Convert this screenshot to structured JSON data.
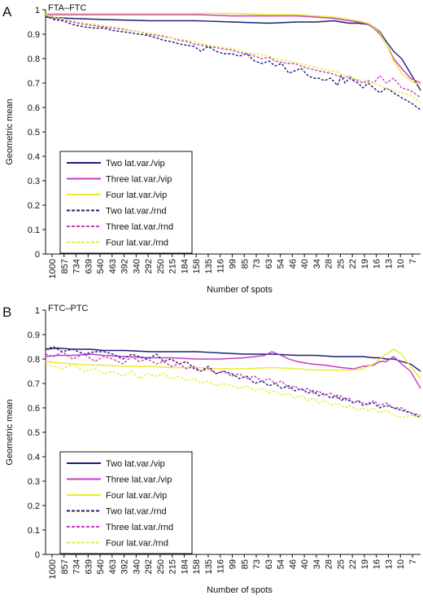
{
  "chart_data": [
    {
      "panel_label": "A",
      "title": "FTA–FTC",
      "type": "line",
      "xlabel": "Number of spots",
      "ylabel": "Geometric mean",
      "ylim": [
        0,
        1
      ],
      "yticks": [
        "0",
        "0.1",
        "0.2",
        "0.3",
        "0.4",
        "0.5",
        "0.6",
        "0.7",
        "0.8",
        "0.9",
        "1"
      ],
      "x_categories": [
        "1000",
        "857",
        "734",
        "639",
        "540",
        "463",
        "392",
        "340",
        "292",
        "250",
        "215",
        "184",
        "158",
        "135",
        "116",
        "99",
        "85",
        "73",
        "63",
        "54",
        "46",
        "40",
        "34",
        "28",
        "25",
        "22",
        "19",
        "16",
        "13",
        "10",
        "7"
      ],
      "x_reversed_spot_count": true,
      "grid": false,
      "legend_position": "center-left",
      "series": [
        {
          "name": "Two lat.var./vip",
          "color": "#1c1f7a",
          "dash": false,
          "x": [
            1000,
            732,
            463,
            247,
            136,
            85,
            52,
            36,
            28,
            22,
            20,
            18,
            16,
            14,
            13,
            12,
            11,
            10,
            9,
            8,
            7
          ],
          "y": [
            0.97,
            0.965,
            0.96,
            0.955,
            0.955,
            0.95,
            0.945,
            0.95,
            0.95,
            0.955,
            0.95,
            0.945,
            0.945,
            0.94,
            0.93,
            0.91,
            0.87,
            0.83,
            0.8,
            0.74,
            0.67
          ]
        },
        {
          "name": "Three lat.var./vip",
          "color": "#c43cc4",
          "dash": false,
          "x": [
            1000,
            732,
            463,
            247,
            136,
            85,
            52,
            36,
            28,
            22,
            20,
            18,
            16,
            14,
            13,
            12,
            11,
            10,
            9,
            8,
            7
          ],
          "y": [
            0.98,
            0.98,
            0.98,
            0.98,
            0.98,
            0.975,
            0.975,
            0.975,
            0.97,
            0.965,
            0.96,
            0.955,
            0.95,
            0.94,
            0.925,
            0.9,
            0.86,
            0.8,
            0.76,
            0.72,
            0.7
          ]
        },
        {
          "name": "Four lat.var./vip",
          "color": "#e8ec2c",
          "dash": false,
          "x": [
            1000,
            732,
            463,
            247,
            136,
            85,
            52,
            36,
            28,
            22,
            20,
            18,
            16,
            14,
            13,
            12,
            11,
            10,
            9,
            8,
            7
          ],
          "y": [
            0.985,
            0.985,
            0.985,
            0.985,
            0.985,
            0.985,
            0.98,
            0.98,
            0.975,
            0.97,
            0.965,
            0.96,
            0.955,
            0.945,
            0.93,
            0.905,
            0.86,
            0.79,
            0.74,
            0.71,
            0.69
          ]
        },
        {
          "name": "Two lat.var./rnd",
          "color": "#1c1f7a",
          "dash": true,
          "x": [
            1000,
            900,
            800,
            700,
            600,
            520,
            463,
            410,
            360,
            320,
            290,
            260,
            230,
            210,
            190,
            170,
            155,
            140,
            128,
            116,
            105,
            95,
            85,
            77,
            70,
            63,
            57,
            52,
            48,
            44,
            40,
            37,
            34,
            31,
            29,
            27,
            25,
            23,
            21,
            20,
            19,
            18,
            17,
            16,
            15,
            14,
            13,
            12,
            11,
            10,
            9,
            8,
            7
          ],
          "y": [
            0.975,
            0.96,
            0.955,
            0.94,
            0.93,
            0.925,
            0.925,
            0.915,
            0.91,
            0.905,
            0.9,
            0.895,
            0.885,
            0.875,
            0.87,
            0.86,
            0.855,
            0.85,
            0.83,
            0.85,
            0.83,
            0.82,
            0.82,
            0.81,
            0.82,
            0.79,
            0.78,
            0.79,
            0.77,
            0.78,
            0.74,
            0.75,
            0.76,
            0.73,
            0.72,
            0.72,
            0.71,
            0.72,
            0.69,
            0.73,
            0.7,
            0.72,
            0.71,
            0.7,
            0.68,
            0.7,
            0.68,
            0.66,
            0.68,
            0.66,
            0.64,
            0.62,
            0.59
          ]
        },
        {
          "name": "Three lat.var./rnd",
          "color": "#c43cc4",
          "dash": true,
          "x": [
            1000,
            900,
            800,
            700,
            600,
            520,
            463,
            410,
            360,
            320,
            290,
            260,
            230,
            210,
            190,
            170,
            155,
            140,
            128,
            116,
            105,
            95,
            85,
            77,
            70,
            63,
            57,
            52,
            48,
            44,
            40,
            37,
            34,
            31,
            29,
            27,
            25,
            23,
            21,
            20,
            19,
            18,
            17,
            16,
            15,
            14,
            13,
            12,
            11,
            10,
            9,
            8,
            7
          ],
          "y": [
            0.975,
            0.965,
            0.96,
            0.95,
            0.94,
            0.935,
            0.93,
            0.925,
            0.92,
            0.915,
            0.91,
            0.9,
            0.895,
            0.89,
            0.885,
            0.875,
            0.87,
            0.86,
            0.855,
            0.85,
            0.845,
            0.84,
            0.835,
            0.825,
            0.82,
            0.81,
            0.8,
            0.805,
            0.79,
            0.785,
            0.78,
            0.78,
            0.77,
            0.76,
            0.755,
            0.75,
            0.745,
            0.74,
            0.73,
            0.725,
            0.72,
            0.73,
            0.715,
            0.71,
            0.7,
            0.71,
            0.7,
            0.73,
            0.7,
            0.72,
            0.68,
            0.67,
            0.64
          ]
        },
        {
          "name": "Four lat.var./rnd",
          "color": "#e8ec2c",
          "dash": true,
          "x": [
            1000,
            900,
            800,
            700,
            600,
            520,
            463,
            410,
            360,
            320,
            290,
            260,
            230,
            210,
            190,
            170,
            155,
            140,
            128,
            116,
            105,
            95,
            85,
            77,
            70,
            63,
            57,
            52,
            48,
            44,
            40,
            37,
            34,
            31,
            29,
            27,
            25,
            23,
            21,
            20,
            19,
            18,
            17,
            16,
            15,
            14,
            13,
            12,
            11,
            10,
            9,
            8,
            7
          ],
          "y": [
            0.98,
            0.97,
            0.965,
            0.955,
            0.945,
            0.94,
            0.935,
            0.93,
            0.925,
            0.915,
            0.91,
            0.905,
            0.9,
            0.895,
            0.885,
            0.88,
            0.875,
            0.87,
            0.86,
            0.855,
            0.85,
            0.845,
            0.84,
            0.835,
            0.825,
            0.82,
            0.815,
            0.81,
            0.8,
            0.795,
            0.79,
            0.785,
            0.78,
            0.77,
            0.765,
            0.76,
            0.755,
            0.75,
            0.745,
            0.735,
            0.73,
            0.725,
            0.72,
            0.715,
            0.71,
            0.705,
            0.7,
            0.69,
            0.68,
            0.67,
            0.66,
            0.65,
            0.62
          ]
        }
      ]
    },
    {
      "panel_label": "B",
      "title": "FTC–PTC",
      "type": "line",
      "xlabel": "Number of spots",
      "ylabel": "Geometric mean",
      "ylim": [
        0,
        1
      ],
      "yticks": [
        "0",
        "0.1",
        "0.2",
        "0.3",
        "0.4",
        "0.5",
        "0.6",
        "0.7",
        "0.8",
        "0.9",
        "1"
      ],
      "x_categories": [
        "1000",
        "857",
        "734",
        "639",
        "540",
        "463",
        "392",
        "340",
        "292",
        "250",
        "215",
        "184",
        "158",
        "135",
        "116",
        "99",
        "85",
        "73",
        "63",
        "54",
        "46",
        "40",
        "34",
        "28",
        "25",
        "22",
        "19",
        "16",
        "13",
        "10",
        "7"
      ],
      "x_reversed_spot_count": true,
      "grid": false,
      "legend_position": "center-left",
      "series": [
        {
          "name": "Two lat.var./vip",
          "color": "#1c1f7a",
          "dash": false,
          "x": [
            1000,
            850,
            700,
            550,
            463,
            350,
            250,
            190,
            136,
            100,
            72,
            50,
            36,
            28,
            22,
            18,
            15,
            13,
            12,
            11,
            10,
            9,
            8,
            7
          ],
          "y": [
            0.84,
            0.845,
            0.84,
            0.84,
            0.835,
            0.835,
            0.83,
            0.83,
            0.83,
            0.825,
            0.82,
            0.82,
            0.815,
            0.815,
            0.81,
            0.81,
            0.81,
            0.805,
            0.805,
            0.8,
            0.8,
            0.79,
            0.78,
            0.75
          ]
        },
        {
          "name": "Three lat.var./vip",
          "color": "#c43cc4",
          "dash": false,
          "x": [
            1000,
            850,
            700,
            550,
            463,
            350,
            250,
            190,
            136,
            100,
            72,
            55,
            50,
            46,
            40,
            36,
            30,
            25,
            20,
            17,
            15,
            13,
            12,
            11,
            10,
            9,
            8,
            7
          ],
          "y": [
            0.81,
            0.815,
            0.815,
            0.82,
            0.815,
            0.81,
            0.805,
            0.805,
            0.8,
            0.8,
            0.805,
            0.815,
            0.83,
            0.82,
            0.8,
            0.79,
            0.78,
            0.775,
            0.765,
            0.76,
            0.77,
            0.775,
            0.79,
            0.79,
            0.81,
            0.78,
            0.75,
            0.68
          ]
        },
        {
          "name": "Four lat.var./vip",
          "color": "#e8ec2c",
          "dash": false,
          "x": [
            1000,
            850,
            700,
            550,
            463,
            350,
            250,
            190,
            136,
            100,
            72,
            50,
            36,
            28,
            22,
            18,
            15,
            13,
            12,
            11,
            10,
            9,
            8,
            7
          ],
          "y": [
            0.79,
            0.785,
            0.78,
            0.775,
            0.775,
            0.77,
            0.77,
            0.765,
            0.765,
            0.76,
            0.76,
            0.765,
            0.76,
            0.755,
            0.755,
            0.755,
            0.76,
            0.78,
            0.8,
            0.82,
            0.84,
            0.82,
            0.77,
            0.72
          ]
        },
        {
          "name": "Two lat.var./rnd",
          "color": "#1c1f7a",
          "dash": true,
          "x": [
            1000,
            900,
            800,
            700,
            600,
            520,
            463,
            410,
            360,
            320,
            290,
            260,
            230,
            210,
            190,
            170,
            155,
            140,
            128,
            116,
            105,
            95,
            85,
            77,
            70,
            63,
            57,
            52,
            48,
            44,
            40,
            37,
            34,
            31,
            29,
            27,
            25,
            23,
            21,
            20,
            19,
            18,
            17,
            16,
            15,
            14,
            13,
            12,
            11,
            10,
            9,
            8,
            7
          ],
          "y": [
            0.84,
            0.85,
            0.83,
            0.84,
            0.82,
            0.83,
            0.83,
            0.82,
            0.8,
            0.82,
            0.81,
            0.8,
            0.82,
            0.79,
            0.8,
            0.78,
            0.79,
            0.76,
            0.75,
            0.77,
            0.74,
            0.75,
            0.74,
            0.72,
            0.73,
            0.7,
            0.71,
            0.69,
            0.7,
            0.68,
            0.69,
            0.67,
            0.68,
            0.66,
            0.67,
            0.65,
            0.66,
            0.64,
            0.65,
            0.63,
            0.64,
            0.63,
            0.62,
            0.63,
            0.61,
            0.62,
            0.62,
            0.6,
            0.61,
            0.6,
            0.59,
            0.58,
            0.56
          ]
        },
        {
          "name": "Three lat.var./rnd",
          "color": "#c43cc4",
          "dash": true,
          "x": [
            1000,
            900,
            800,
            700,
            600,
            520,
            463,
            410,
            360,
            320,
            290,
            260,
            230,
            210,
            190,
            170,
            155,
            140,
            128,
            116,
            105,
            95,
            85,
            77,
            70,
            63,
            57,
            52,
            48,
            44,
            40,
            37,
            34,
            31,
            29,
            27,
            25,
            23,
            21,
            20,
            19,
            18,
            17,
            16,
            15,
            14,
            13,
            12,
            11,
            10,
            9,
            8,
            7
          ],
          "y": [
            0.82,
            0.81,
            0.83,
            0.8,
            0.82,
            0.79,
            0.81,
            0.8,
            0.78,
            0.81,
            0.79,
            0.8,
            0.78,
            0.79,
            0.77,
            0.78,
            0.76,
            0.77,
            0.75,
            0.76,
            0.74,
            0.75,
            0.73,
            0.74,
            0.72,
            0.73,
            0.71,
            0.72,
            0.7,
            0.71,
            0.68,
            0.69,
            0.67,
            0.68,
            0.66,
            0.67,
            0.65,
            0.66,
            0.64,
            0.65,
            0.63,
            0.64,
            0.62,
            0.63,
            0.62,
            0.61,
            0.63,
            0.61,
            0.62,
            0.6,
            0.6,
            0.58,
            0.57
          ]
        },
        {
          "name": "Four lat.var./rnd",
          "color": "#e8ec2c",
          "dash": true,
          "x": [
            1000,
            900,
            800,
            700,
            600,
            520,
            463,
            410,
            360,
            320,
            290,
            260,
            230,
            210,
            190,
            170,
            155,
            140,
            128,
            116,
            105,
            95,
            85,
            77,
            70,
            63,
            57,
            52,
            48,
            44,
            40,
            37,
            34,
            31,
            29,
            27,
            25,
            23,
            21,
            20,
            19,
            18,
            17,
            16,
            15,
            14,
            13,
            12,
            11,
            10,
            9,
            8,
            7
          ],
          "y": [
            0.78,
            0.77,
            0.76,
            0.78,
            0.75,
            0.76,
            0.74,
            0.75,
            0.73,
            0.75,
            0.72,
            0.74,
            0.73,
            0.74,
            0.72,
            0.73,
            0.71,
            0.72,
            0.7,
            0.71,
            0.69,
            0.7,
            0.69,
            0.68,
            0.69,
            0.67,
            0.68,
            0.66,
            0.67,
            0.65,
            0.66,
            0.64,
            0.65,
            0.63,
            0.64,
            0.62,
            0.63,
            0.61,
            0.62,
            0.61,
            0.6,
            0.61,
            0.6,
            0.59,
            0.6,
            0.59,
            0.6,
            0.58,
            0.59,
            0.57,
            0.56,
            0.57,
            0.56
          ]
        }
      ]
    }
  ]
}
